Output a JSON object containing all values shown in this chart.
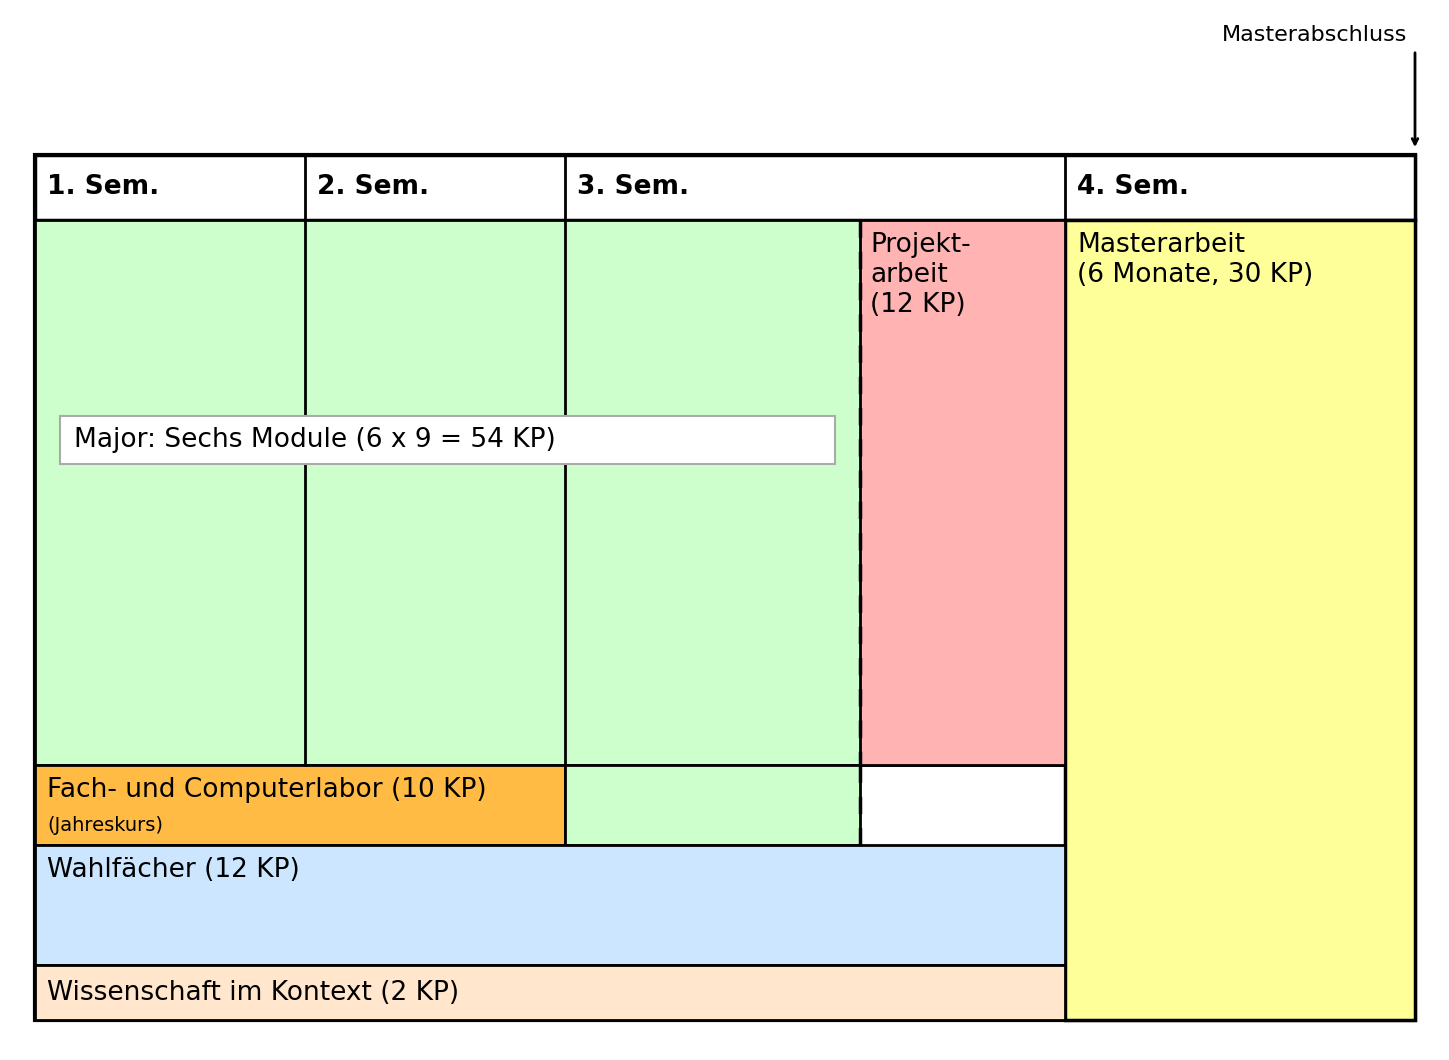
{
  "fig_width": 14.49,
  "fig_height": 10.6,
  "background_color": "#ffffff",
  "semester_labels": [
    "1. Sem.",
    "2. Sem.",
    "3. Sem.",
    "4. Sem."
  ],
  "green_color": "#ccffcc",
  "pink_color": "#ffb3b3",
  "yellow_color": "#ffff99",
  "orange_color": "#ffbb44",
  "blue_color": "#cce6ff",
  "peach_color": "#ffe6cc",
  "masterabschluss_label": "Masterabschluss",
  "major_label": "Major: Sechs Module (6 x 9 = 54 KP)",
  "projektarbeit_label": "Projekt-\narbeit\n(12 KP)",
  "masterarbeit_label": "Masterarbeit\n(6 Monate, 30 KP)",
  "labor_label": "Fach- und Computerlabor (10 KP)",
  "labor_sublabel": "(Jahreskurs)",
  "wahlfach_label": "Wahlfächer (12 KP)",
  "wissenschaft_label": "Wissenschaft im Kontext (2 KP)"
}
